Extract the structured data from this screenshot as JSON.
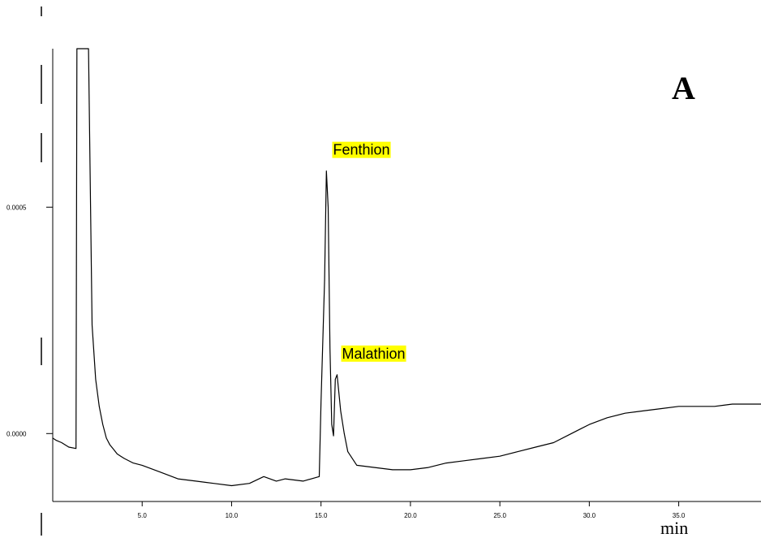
{
  "chart_data": {
    "type": "line",
    "panel_label": "A",
    "xlabel": "min",
    "ylabel": "",
    "xlim": [
      0.0,
      39.6
    ],
    "ylim": [
      -0.00015,
      0.00085
    ],
    "x_ticks": [
      5.0,
      10.0,
      15.0,
      20.0,
      25.0,
      30.0,
      35.0
    ],
    "x_tick_labels": [
      "5.0",
      "10.0",
      "15.0",
      "20.0",
      "25.0",
      "30.0",
      "35.0"
    ],
    "y_ticks": [
      0.0,
      0.0005
    ],
    "y_tick_labels": [
      "0.0000",
      "0.0005"
    ],
    "grid": false,
    "annotations": [
      {
        "text": "Fenthion",
        "x": 15.4,
        "y": 0.00058,
        "highlight": "#ffff00"
      },
      {
        "text": "Malathion",
        "x": 15.9,
        "y": 0.00013,
        "highlight": "#ffff00"
      }
    ],
    "series": [
      {
        "color": "#000000",
        "x": [
          0.0,
          0.2,
          0.5,
          0.9,
          1.3,
          1.35,
          1.4,
          1.6,
          1.8,
          2.0,
          2.2,
          2.4,
          2.6,
          2.8,
          3.0,
          3.2,
          3.4,
          3.6,
          3.8,
          4.0,
          4.5,
          5.0,
          6.0,
          7.0,
          8.0,
          9.0,
          10.0,
          11.0,
          11.8,
          12.5,
          13.0,
          14.0,
          14.9,
          15.0,
          15.2,
          15.3,
          15.4,
          15.5,
          15.6,
          15.7,
          15.8,
          15.9,
          16.0,
          16.1,
          16.3,
          16.5,
          17.0,
          18.0,
          19.0,
          20.0,
          21.0,
          22.0,
          23.0,
          24.0,
          25.0,
          26.0,
          27.0,
          28.0,
          29.0,
          29.5,
          30.0,
          31.0,
          32.0,
          33.0,
          34.0,
          35.0,
          36.0,
          37.0,
          38.0,
          39.6
        ],
        "y": [
          -1e-05,
          -1.5e-05,
          -2e-05,
          -3e-05,
          -3.3e-05,
          0.00085,
          0.00085,
          0.00085,
          0.00085,
          0.00085,
          0.00024,
          0.00012,
          6e-05,
          2e-05,
          -1e-05,
          -2.5e-05,
          -3.5e-05,
          -4.5e-05,
          -5e-05,
          -5.5e-05,
          -6.5e-05,
          -7e-05,
          -8.5e-05,
          -0.0001,
          -0.000105,
          -0.00011,
          -0.000115,
          -0.00011,
          -9.5e-05,
          -0.000105,
          -0.0001,
          -0.000105,
          -9.5e-05,
          7e-05,
          0.00034,
          0.00058,
          0.0005,
          0.00019,
          2e-05,
          -5e-06,
          0.00012,
          0.00013,
          9e-05,
          5e-05,
          0.0,
          -4e-05,
          -7e-05,
          -7.5e-05,
          -8e-05,
          -8e-05,
          -7.5e-05,
          -6.5e-05,
          -6e-05,
          -5.5e-05,
          -5e-05,
          -4e-05,
          -3e-05,
          -2e-05,
          0.0,
          1e-05,
          2e-05,
          3.5e-05,
          4.5e-05,
          5e-05,
          5.5e-05,
          6e-05,
          6e-05,
          6e-05,
          6.5e-05,
          6.5e-05
        ]
      }
    ]
  }
}
